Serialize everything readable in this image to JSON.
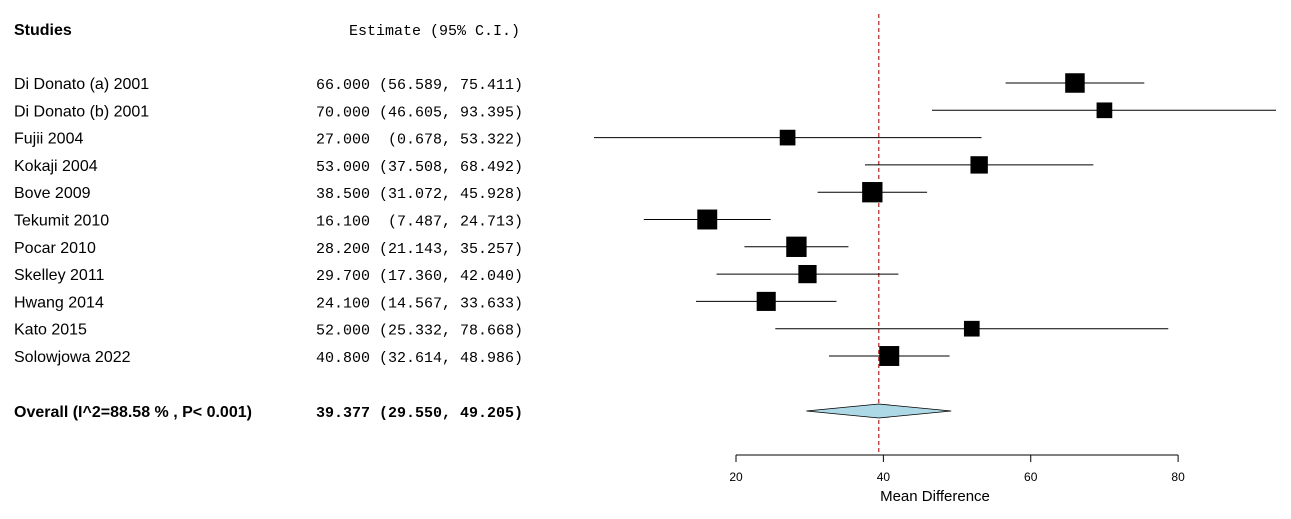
{
  "colors": {
    "box": "#000000",
    "ci_line": "#000000",
    "diamond_fill": "#ADD8E6",
    "reference_line": "#B22222"
  },
  "chart_data": {
    "type": "forest",
    "title": "",
    "header": {
      "studies": "Studies",
      "estimate": "Estimate (95% C.I.)"
    },
    "studies": [
      {
        "name": "Di Donato (a) 2001",
        "estimate": 66.0,
        "lower": 56.589,
        "upper": 75.411,
        "label": "66.000 (56.589, 75.411)",
        "weight": 1.0
      },
      {
        "name": "Di Donato (b) 2001",
        "estimate": 70.0,
        "lower": 46.605,
        "upper": 93.395,
        "label": "70.000 (46.605, 93.395)",
        "weight": 0.55
      },
      {
        "name": "Fujii 2004",
        "estimate": 27.0,
        "lower": 0.678,
        "upper": 53.322,
        "label": "27.000  (0.678, 53.322)",
        "weight": 0.55
      },
      {
        "name": "Kokaji  2004",
        "estimate": 53.0,
        "lower": 37.508,
        "upper": 68.492,
        "label": "53.000 (37.508, 68.492)",
        "weight": 0.75
      },
      {
        "name": "Bove 2009",
        "estimate": 38.5,
        "lower": 31.072,
        "upper": 45.928,
        "label": "38.500 (31.072, 45.928)",
        "weight": 1.1
      },
      {
        "name": "Tekumit 2010",
        "estimate": 16.1,
        "lower": 7.487,
        "upper": 24.713,
        "label": "16.100  (7.487, 24.713)",
        "weight": 1.05
      },
      {
        "name": "Pocar 2010",
        "estimate": 28.2,
        "lower": 21.143,
        "upper": 35.257,
        "label": "28.200 (21.143, 35.257)",
        "weight": 1.1
      },
      {
        "name": "Skelley 2011",
        "estimate": 29.7,
        "lower": 17.36,
        "upper": 42.04,
        "label": "29.700 (17.360, 42.040)",
        "weight": 0.85
      },
      {
        "name": "Hwang 2014",
        "estimate": 24.1,
        "lower": 14.567,
        "upper": 33.633,
        "label": "24.100 (14.567, 33.633)",
        "weight": 0.95
      },
      {
        "name": "Kato  2015",
        "estimate": 52.0,
        "lower": 25.332,
        "upper": 78.668,
        "label": "52.000 (25.332, 78.668)",
        "weight": 0.55
      },
      {
        "name": "Solowjowa 2022",
        "estimate": 40.8,
        "lower": 32.614,
        "upper": 48.986,
        "label": "40.800 (32.614, 48.986)",
        "weight": 1.05
      }
    ],
    "overall": {
      "name": "Overall (I^2=88.58 % , P< 0.001)",
      "estimate": 39.377,
      "lower": 29.55,
      "upper": 49.205,
      "label": "39.377 (29.550, 49.205)"
    },
    "xaxis": {
      "label": "Mean Difference",
      "ticks": [
        20,
        40,
        60,
        80
      ],
      "range": [
        20,
        80
      ]
    },
    "reference_line": 39.377
  }
}
